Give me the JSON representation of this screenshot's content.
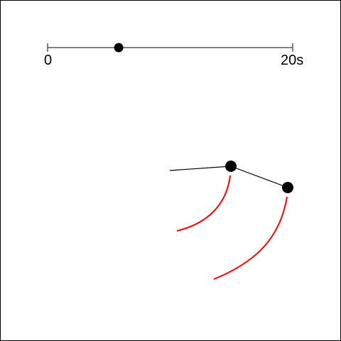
{
  "timeline": {
    "start_label": "0",
    "end_label": "20s",
    "start_value": 0,
    "end_value": 20,
    "current_value": 5.8
  },
  "colors": {
    "arm": "#000000",
    "trail": "#ff0000",
    "track": "#555555",
    "joint": "#000000"
  }
}
